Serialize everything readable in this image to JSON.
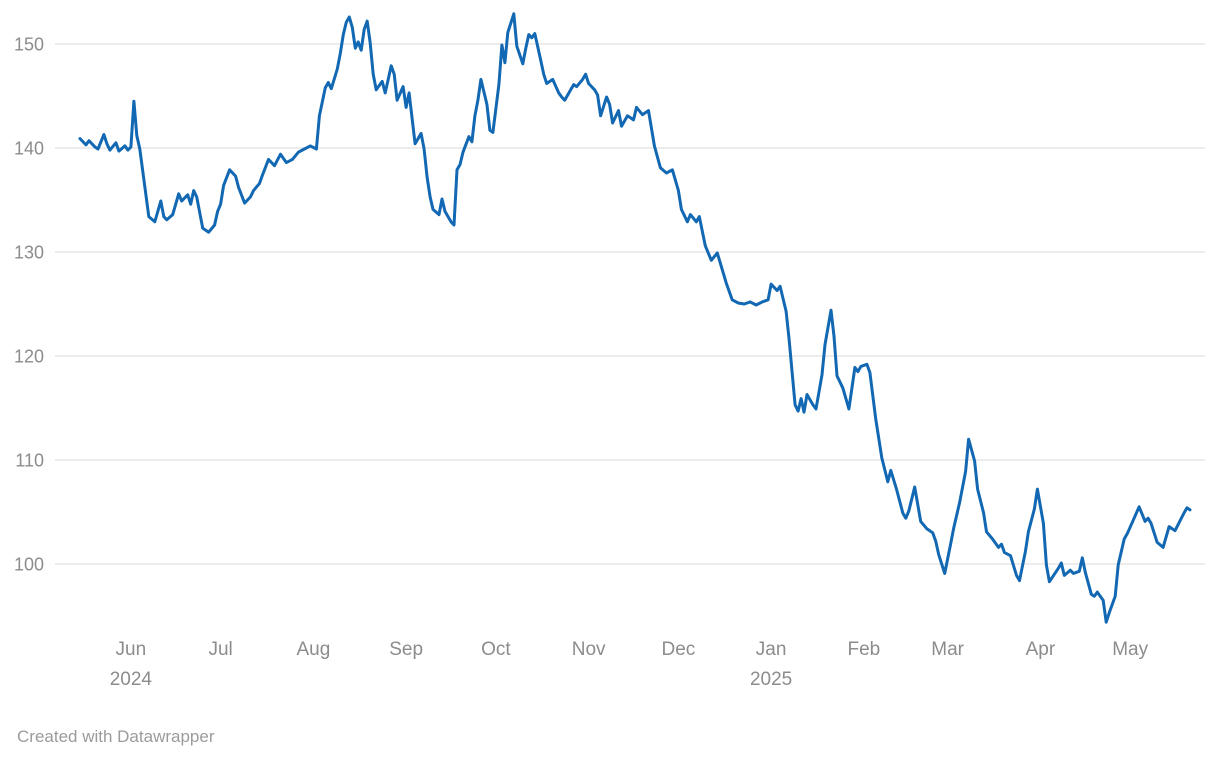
{
  "footer": {
    "credit": "Created with Datawrapper"
  },
  "chart_data": {
    "type": "line",
    "title": "",
    "legend": "none",
    "grid": "horizontal",
    "line_color": "#1268b2",
    "grid_color": "#d9d9d9",
    "label_color": "#8c8c8c",
    "x_domain": [
      "2024-05-15",
      "2025-05-21"
    ],
    "x_total_days": 371,
    "y_range": [
      94,
      153
    ],
    "y_ticks": [
      100,
      110,
      120,
      130,
      140,
      150
    ],
    "x_ticks": [
      {
        "label": "Jun",
        "sublabel": "2024",
        "day": 17
      },
      {
        "label": "Jul",
        "sublabel": "",
        "day": 47
      },
      {
        "label": "Aug",
        "sublabel": "",
        "day": 78
      },
      {
        "label": "Sep",
        "sublabel": "",
        "day": 109
      },
      {
        "label": "Oct",
        "sublabel": "",
        "day": 139
      },
      {
        "label": "Nov",
        "sublabel": "",
        "day": 170
      },
      {
        "label": "Dec",
        "sublabel": "",
        "day": 200
      },
      {
        "label": "Jan",
        "sublabel": "2025",
        "day": 231
      },
      {
        "label": "Feb",
        "sublabel": "",
        "day": 262
      },
      {
        "label": "Mar",
        "sublabel": "",
        "day": 290
      },
      {
        "label": "Apr",
        "sublabel": "",
        "day": 321
      },
      {
        "label": "May",
        "sublabel": "",
        "day": 351
      }
    ],
    "points": [
      [
        0,
        140.9
      ],
      [
        2,
        140.3
      ],
      [
        3,
        140.7
      ],
      [
        5,
        140.1
      ],
      [
        6,
        139.9
      ],
      [
        8,
        141.3
      ],
      [
        9,
        140.4
      ],
      [
        10,
        139.8
      ],
      [
        12,
        140.5
      ],
      [
        13,
        139.7
      ],
      [
        15,
        140.2
      ],
      [
        16,
        139.8
      ],
      [
        17,
        140.1
      ],
      [
        18,
        144.5
      ],
      [
        19,
        141.2
      ],
      [
        20,
        139.9
      ],
      [
        23,
        133.4
      ],
      [
        25,
        132.9
      ],
      [
        27,
        134.9
      ],
      [
        28,
        133.4
      ],
      [
        29,
        133.1
      ],
      [
        31,
        133.6
      ],
      [
        33,
        135.6
      ],
      [
        34,
        134.9
      ],
      [
        36,
        135.5
      ],
      [
        37,
        134.6
      ],
      [
        38,
        135.9
      ],
      [
        39,
        135.3
      ],
      [
        41,
        132.3
      ],
      [
        43,
        131.9
      ],
      [
        45,
        132.6
      ],
      [
        46,
        133.9
      ],
      [
        47,
        134.6
      ],
      [
        48,
        136.4
      ],
      [
        50,
        137.9
      ],
      [
        52,
        137.3
      ],
      [
        53,
        136.2
      ],
      [
        55,
        134.7
      ],
      [
        57,
        135.3
      ],
      [
        58,
        135.9
      ],
      [
        60,
        136.6
      ],
      [
        61,
        137.4
      ],
      [
        63,
        138.9
      ],
      [
        65,
        138.3
      ],
      [
        67,
        139.4
      ],
      [
        69,
        138.6
      ],
      [
        71,
        138.9
      ],
      [
        73,
        139.6
      ],
      [
        75,
        139.9
      ],
      [
        77,
        140.2
      ],
      [
        79,
        139.9
      ],
      [
        80,
        143.1
      ],
      [
        82,
        145.8
      ],
      [
        83,
        146.3
      ],
      [
        84,
        145.7
      ],
      [
        86,
        147.6
      ],
      [
        87,
        149.1
      ],
      [
        88,
        150.9
      ],
      [
        89,
        152.1
      ],
      [
        90,
        152.6
      ],
      [
        91,
        151.6
      ],
      [
        92,
        149.6
      ],
      [
        93,
        150.2
      ],
      [
        94,
        149.4
      ],
      [
        95,
        151.4
      ],
      [
        96,
        152.2
      ],
      [
        97,
        150.1
      ],
      [
        98,
        147.1
      ],
      [
        99,
        145.6
      ],
      [
        101,
        146.4
      ],
      [
        102,
        145.3
      ],
      [
        104,
        147.9
      ],
      [
        105,
        147.1
      ],
      [
        106,
        144.6
      ],
      [
        108,
        145.9
      ],
      [
        109,
        143.9
      ],
      [
        110,
        145.3
      ],
      [
        112,
        140.4
      ],
      [
        113,
        140.9
      ],
      [
        114,
        141.4
      ],
      [
        115,
        139.9
      ],
      [
        116,
        137.2
      ],
      [
        117,
        135.3
      ],
      [
        118,
        134.1
      ],
      [
        120,
        133.6
      ],
      [
        121,
        135.1
      ],
      [
        122,
        133.9
      ],
      [
        124,
        132.9
      ],
      [
        125,
        132.6
      ],
      [
        126,
        137.9
      ],
      [
        127,
        138.4
      ],
      [
        128,
        139.6
      ],
      [
        130,
        141.1
      ],
      [
        131,
        140.6
      ],
      [
        132,
        143.1
      ],
      [
        133,
        144.6
      ],
      [
        134,
        146.6
      ],
      [
        136,
        144.2
      ],
      [
        137,
        141.7
      ],
      [
        138,
        141.5
      ],
      [
        140,
        146.1
      ],
      [
        141,
        149.9
      ],
      [
        142,
        148.2
      ],
      [
        143,
        151.1
      ],
      [
        145,
        152.9
      ],
      [
        146,
        149.8
      ],
      [
        148,
        148.1
      ],
      [
        149,
        149.6
      ],
      [
        150,
        150.9
      ],
      [
        151,
        150.6
      ],
      [
        152,
        151.0
      ],
      [
        154,
        148.4
      ],
      [
        155,
        147.1
      ],
      [
        156,
        146.2
      ],
      [
        158,
        146.6
      ],
      [
        160,
        145.3
      ],
      [
        161,
        144.9
      ],
      [
        162,
        144.6
      ],
      [
        164,
        145.6
      ],
      [
        165,
        146.1
      ],
      [
        166,
        145.9
      ],
      [
        168,
        146.6
      ],
      [
        169,
        147.1
      ],
      [
        170,
        146.2
      ],
      [
        172,
        145.6
      ],
      [
        173,
        145.1
      ],
      [
        174,
        143.1
      ],
      [
        176,
        144.9
      ],
      [
        177,
        144.2
      ],
      [
        178,
        142.4
      ],
      [
        180,
        143.6
      ],
      [
        181,
        142.1
      ],
      [
        183,
        143.1
      ],
      [
        184,
        142.9
      ],
      [
        185,
        142.7
      ],
      [
        186,
        143.9
      ],
      [
        188,
        143.2
      ],
      [
        189,
        143.4
      ],
      [
        190,
        143.6
      ],
      [
        192,
        140.2
      ],
      [
        194,
        138.1
      ],
      [
        196,
        137.6
      ],
      [
        198,
        137.9
      ],
      [
        200,
        135.9
      ],
      [
        201,
        134.1
      ],
      [
        203,
        132.9
      ],
      [
        204,
        133.6
      ],
      [
        206,
        132.9
      ],
      [
        207,
        133.4
      ],
      [
        209,
        130.6
      ],
      [
        211,
        129.2
      ],
      [
        213,
        129.9
      ],
      [
        216,
        127.0
      ],
      [
        218,
        125.4
      ],
      [
        220,
        125.1
      ],
      [
        222,
        125.0
      ],
      [
        224,
        125.2
      ],
      [
        226,
        124.9
      ],
      [
        228,
        125.2
      ],
      [
        230,
        125.4
      ],
      [
        231,
        126.9
      ],
      [
        233,
        126.3
      ],
      [
        234,
        126.7
      ],
      [
        236,
        124.3
      ],
      [
        237,
        121.6
      ],
      [
        239,
        115.3
      ],
      [
        240,
        114.7
      ],
      [
        241,
        115.9
      ],
      [
        242,
        114.6
      ],
      [
        243,
        116.3
      ],
      [
        245,
        115.3
      ],
      [
        246,
        114.9
      ],
      [
        248,
        118.2
      ],
      [
        249,
        121.1
      ],
      [
        251,
        124.4
      ],
      [
        252,
        121.9
      ],
      [
        253,
        118.1
      ],
      [
        255,
        116.9
      ],
      [
        257,
        114.9
      ],
      [
        259,
        118.9
      ],
      [
        260,
        118.5
      ],
      [
        261,
        119.0
      ],
      [
        263,
        119.2
      ],
      [
        264,
        118.4
      ],
      [
        266,
        113.9
      ],
      [
        268,
        110.2
      ],
      [
        270,
        107.9
      ],
      [
        271,
        109.0
      ],
      [
        273,
        107.1
      ],
      [
        275,
        104.9
      ],
      [
        276,
        104.4
      ],
      [
        277,
        105.1
      ],
      [
        279,
        107.4
      ],
      [
        281,
        104.1
      ],
      [
        283,
        103.4
      ],
      [
        285,
        103.0
      ],
      [
        286,
        102.2
      ],
      [
        287,
        100.9
      ],
      [
        289,
        99.1
      ],
      [
        291,
        101.9
      ],
      [
        292,
        103.4
      ],
      [
        294,
        105.9
      ],
      [
        296,
        108.9
      ],
      [
        297,
        112.0
      ],
      [
        299,
        109.9
      ],
      [
        300,
        107.2
      ],
      [
        302,
        104.9
      ],
      [
        303,
        103.1
      ],
      [
        305,
        102.4
      ],
      [
        307,
        101.6
      ],
      [
        308,
        101.9
      ],
      [
        309,
        101.1
      ],
      [
        311,
        100.8
      ],
      [
        313,
        98.9
      ],
      [
        314,
        98.4
      ],
      [
        316,
        101.2
      ],
      [
        317,
        103.1
      ],
      [
        319,
        105.3
      ],
      [
        320,
        107.2
      ],
      [
        322,
        103.9
      ],
      [
        323,
        99.9
      ],
      [
        324,
        98.3
      ],
      [
        327,
        99.6
      ],
      [
        328,
        100.1
      ],
      [
        329,
        98.9
      ],
      [
        331,
        99.4
      ],
      [
        332,
        99.1
      ],
      [
        334,
        99.3
      ],
      [
        335,
        100.6
      ],
      [
        336,
        99.2
      ],
      [
        338,
        97.1
      ],
      [
        339,
        96.9
      ],
      [
        340,
        97.3
      ],
      [
        342,
        96.5
      ],
      [
        343,
        94.4
      ],
      [
        344,
        95.3
      ],
      [
        346,
        96.9
      ],
      [
        347,
        99.9
      ],
      [
        349,
        102.4
      ],
      [
        350,
        102.9
      ],
      [
        352,
        104.2
      ],
      [
        354,
        105.5
      ],
      [
        356,
        104.1
      ],
      [
        357,
        104.4
      ],
      [
        358,
        103.9
      ],
      [
        360,
        102.1
      ],
      [
        362,
        101.6
      ],
      [
        364,
        103.6
      ],
      [
        366,
        103.2
      ],
      [
        369,
        104.9
      ],
      [
        370,
        105.4
      ],
      [
        371,
        105.2
      ]
    ]
  }
}
